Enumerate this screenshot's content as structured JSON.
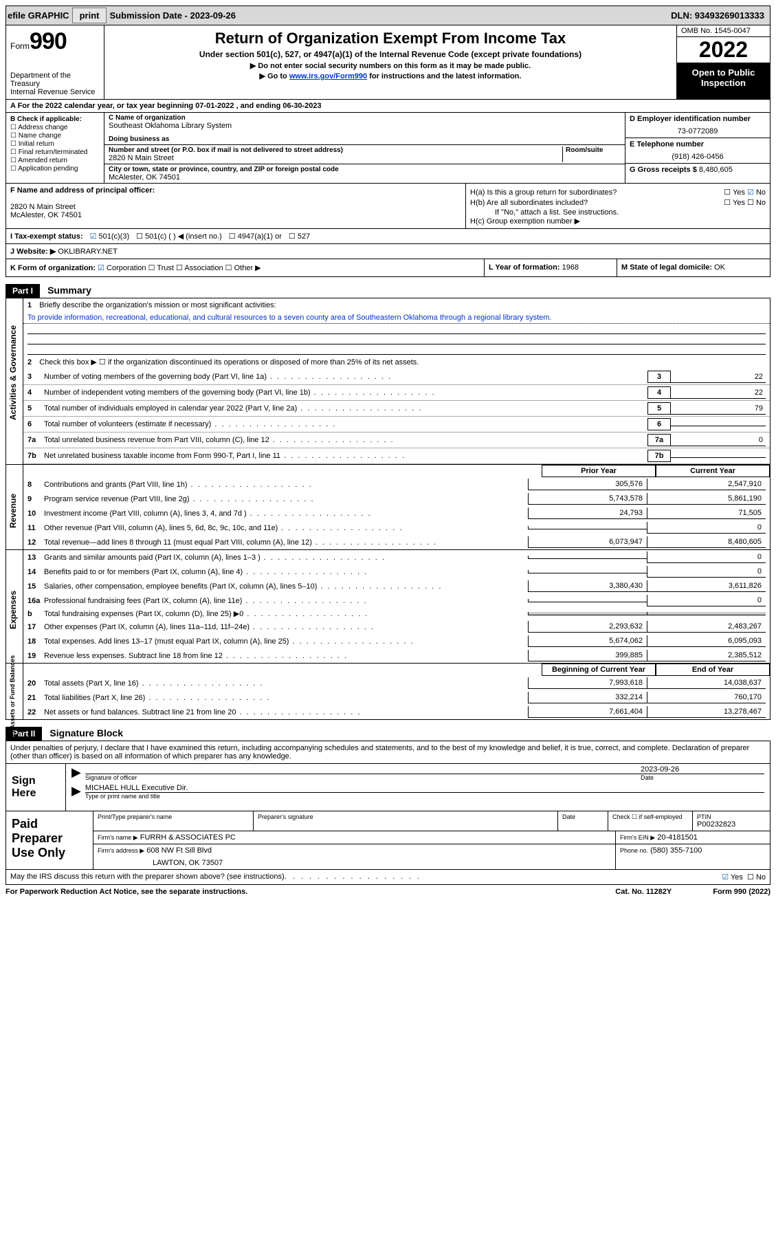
{
  "topBar": {
    "efile": "efile GRAPHIC",
    "print": "print",
    "submission": "Submission Date - 2023-09-26",
    "dln": "DLN: 93493269013333"
  },
  "header": {
    "formWord": "Form",
    "formNo": "990",
    "dept": "Department of the Treasury",
    "service": "Internal Revenue Service",
    "title": "Return of Organization Exempt From Income Tax",
    "subtitle": "Under section 501(c), 527, or 4947(a)(1) of the Internal Revenue Code (except private foundations)",
    "note1": "Do not enter social security numbers on this form as it may be made public.",
    "note2": "Go to www.irs.gov/Form990 for instructions and the latest information.",
    "link": "www.irs.gov/Form990",
    "omb": "OMB No. 1545-0047",
    "year": "2022",
    "open": "Open to Public Inspection"
  },
  "rowA": "A For the 2022 calendar year, or tax year beginning 07-01-2022   , and ending 06-30-2023",
  "boxB": {
    "hdr": "B Check if applicable:",
    "items": [
      "Address change",
      "Name change",
      "Initial return",
      "Final return/terminated",
      "Amended return",
      "Application pending"
    ]
  },
  "boxC": {
    "nameLbl": "C Name of organization",
    "name": "Southeast Oklahoma Library System",
    "dba": "Doing business as",
    "addrLbl": "Number and street (or P.O. box if mail is not delivered to street address)",
    "roomLbl": "Room/suite",
    "addr": "2820 N Main Street",
    "cityLbl": "City or town, state or province, country, and ZIP or foreign postal code",
    "city": "McAlester, OK  74501"
  },
  "boxD": {
    "einLbl": "D Employer identification number",
    "ein": "73-0772089",
    "telLbl": "E Telephone number",
    "tel": "(918) 426-0456",
    "grossLbl": "G Gross receipts $",
    "gross": "8,480,605"
  },
  "boxF": {
    "lbl": "F Name and address of principal officer:",
    "addr1": "2820 N Main Street",
    "addr2": "McAlester, OK  74501"
  },
  "boxH": {
    "ha": "H(a)  Is this a group return for subordinates?",
    "hb": "H(b)  Are all subordinates included?",
    "hbNote": "If \"No,\" attach a list. See instructions.",
    "hc": "H(c)  Group exemption number ▶",
    "yes": "Yes",
    "no": "No"
  },
  "taxStatus": {
    "lbl": "I  Tax-exempt status:",
    "s1": "501(c)(3)",
    "s2": "501(c) (  ) ◀ (insert no.)",
    "s3": "4947(a)(1) or",
    "s4": "527"
  },
  "website": {
    "lbl": "J Website: ▶",
    "val": "OKLIBRARY.NET"
  },
  "rowK": {
    "lbl": "K Form of organization:",
    "corp": "Corporation",
    "trust": "Trust",
    "assoc": "Association",
    "other": "Other ▶",
    "yofLbl": "L Year of formation:",
    "yof": "1968",
    "stLbl": "M State of legal domicile:",
    "st": "OK"
  },
  "partI": {
    "hdr": "Part I",
    "title": "Summary",
    "l1": "Briefly describe the organization's mission or most significant activities:",
    "mission": "To provide information, recreational, educational, and cultural resources to a seven county area of Southeastern Oklahoma through a regional library system.",
    "l2": "Check this box ▶ ☐ if the organization discontinued its operations or disposed of more than 25% of its net assets.",
    "lines": [
      {
        "n": "3",
        "t": "Number of voting members of the governing body (Part VI, line 1a)",
        "v": "22"
      },
      {
        "n": "4",
        "t": "Number of independent voting members of the governing body (Part VI, line 1b)",
        "v": "22"
      },
      {
        "n": "5",
        "t": "Total number of individuals employed in calendar year 2022 (Part V, line 2a)",
        "v": "79"
      },
      {
        "n": "6",
        "t": "Total number of volunteers (estimate if necessary)",
        "v": ""
      },
      {
        "n": "7a",
        "t": "Total unrelated business revenue from Part VIII, column (C), line 12",
        "v": "0"
      },
      {
        "n": "7b",
        "t": "Net unrelated business taxable income from Form 990-T, Part I, line 11",
        "v": ""
      }
    ],
    "tabs": {
      "ag": "Activities & Governance",
      "rev": "Revenue",
      "exp": "Expenses",
      "na": "Net Assets or Fund Balances"
    },
    "cols": {
      "prior": "Prior Year",
      "curr": "Current Year",
      "boc": "Beginning of Current Year",
      "eoy": "End of Year"
    },
    "revLines": [
      {
        "n": "8",
        "t": "Contributions and grants (Part VIII, line 1h)",
        "p": "305,576",
        "c": "2,547,910"
      },
      {
        "n": "9",
        "t": "Program service revenue (Part VIII, line 2g)",
        "p": "5,743,578",
        "c": "5,861,190"
      },
      {
        "n": "10",
        "t": "Investment income (Part VIII, column (A), lines 3, 4, and 7d )",
        "p": "24,793",
        "c": "71,505"
      },
      {
        "n": "11",
        "t": "Other revenue (Part VIII, column (A), lines 5, 6d, 8c, 9c, 10c, and 11e)",
        "p": "",
        "c": "0"
      },
      {
        "n": "12",
        "t": "Total revenue—add lines 8 through 11 (must equal Part VIII, column (A), line 12)",
        "p": "6,073,947",
        "c": "8,480,605"
      }
    ],
    "expLines": [
      {
        "n": "13",
        "t": "Grants and similar amounts paid (Part IX, column (A), lines 1–3 )",
        "p": "",
        "c": "0"
      },
      {
        "n": "14",
        "t": "Benefits paid to or for members (Part IX, column (A), line 4)",
        "p": "",
        "c": "0"
      },
      {
        "n": "15",
        "t": "Salaries, other compensation, employee benefits (Part IX, column (A), lines 5–10)",
        "p": "3,380,430",
        "c": "3,611,826"
      },
      {
        "n": "16a",
        "t": "Professional fundraising fees (Part IX, column (A), line 11e)",
        "p": "",
        "c": "0"
      },
      {
        "n": "b",
        "t": "Total fundraising expenses (Part IX, column (D), line 25) ▶0",
        "p": "shade",
        "c": "shade"
      },
      {
        "n": "17",
        "t": "Other expenses (Part IX, column (A), lines 11a–11d, 11f–24e)",
        "p": "2,293,632",
        "c": "2,483,267"
      },
      {
        "n": "18",
        "t": "Total expenses. Add lines 13–17 (must equal Part IX, column (A), line 25)",
        "p": "5,674,062",
        "c": "6,095,093"
      },
      {
        "n": "19",
        "t": "Revenue less expenses. Subtract line 18 from line 12",
        "p": "399,885",
        "c": "2,385,512"
      }
    ],
    "naLines": [
      {
        "n": "20",
        "t": "Total assets (Part X, line 16)",
        "p": "7,993,618",
        "c": "14,038,637"
      },
      {
        "n": "21",
        "t": "Total liabilities (Part X, line 26)",
        "p": "332,214",
        "c": "760,170"
      },
      {
        "n": "22",
        "t": "Net assets or fund balances. Subtract line 21 from line 20",
        "p": "7,661,404",
        "c": "13,278,467"
      }
    ]
  },
  "partII": {
    "hdr": "Part II",
    "title": "Signature Block",
    "decl": "Under penalties of perjury, I declare that I have examined this return, including accompanying schedules and statements, and to the best of my knowledge and belief, it is true, correct, and complete. Declaration of preparer (other than officer) is based on all information of which preparer has any knowledge.",
    "signHere": "Sign Here",
    "sigOff": "Signature of officer",
    "date": "Date",
    "sigDate": "2023-09-26",
    "officer": "MICHAEL HULL  Executive Dir.",
    "typeName": "Type or print name and title"
  },
  "preparer": {
    "lbl": "Paid Preparer Use Only",
    "printLbl": "Print/Type preparer's name",
    "sigLbl": "Preparer's signature",
    "dateLbl": "Date",
    "chkLbl": "Check ☐ if self-employed",
    "ptinLbl": "PTIN",
    "ptin": "P00232823",
    "firmNameLbl": "Firm's name   ▶",
    "firmName": "FURRH & ASSOCIATES PC",
    "firmEinLbl": "Firm's EIN ▶",
    "firmEin": "20-4181501",
    "firmAddrLbl": "Firm's address ▶",
    "firmAddr1": "608 NW Ft Sill Blvd",
    "firmAddr2": "LAWTON, OK  73507",
    "phoneLbl": "Phone no.",
    "phone": "(580) 355-7100"
  },
  "footer": {
    "discuss": "May the IRS discuss this return with the preparer shown above? (see instructions)",
    "yes": "Yes",
    "no": "No",
    "pra": "For Paperwork Reduction Act Notice, see the separate instructions.",
    "cat": "Cat. No. 11282Y",
    "form": "Form 990 (2022)"
  }
}
